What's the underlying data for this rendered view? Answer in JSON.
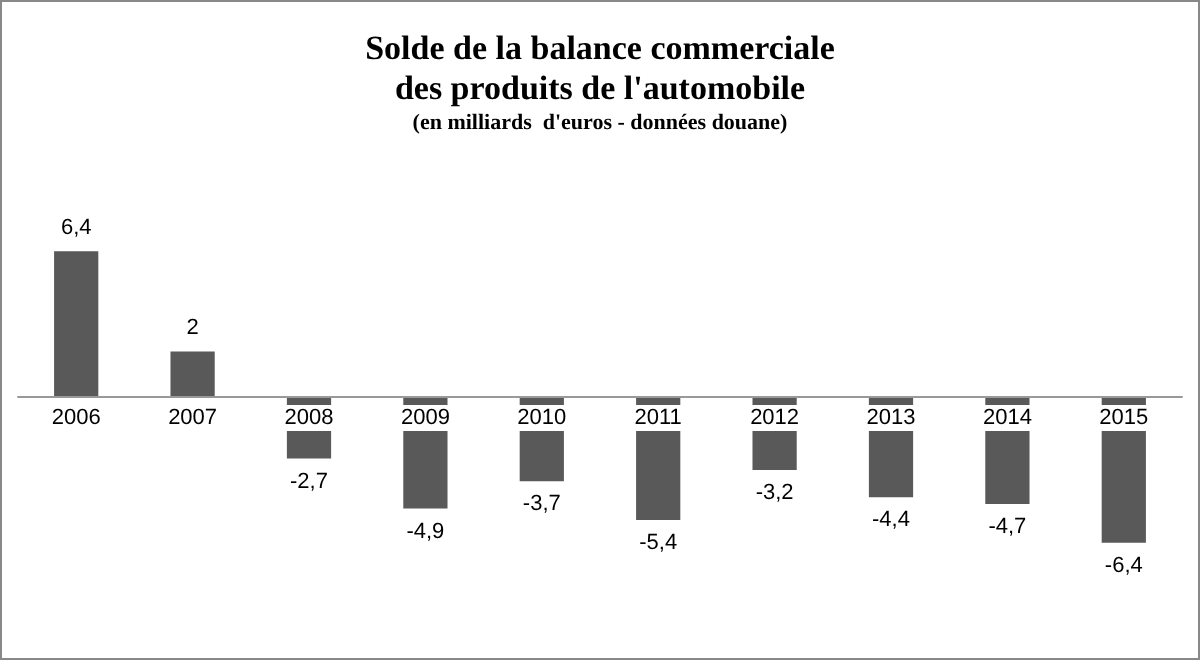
{
  "chart_data": {
    "type": "bar",
    "title": "Solde de la balance commerciale\ndes produits de l'automobile",
    "subtitle": "(en milliards  d'euros - données douane)",
    "categories": [
      "2006",
      "2007",
      "2008",
      "2009",
      "2010",
      "2011",
      "2012",
      "2013",
      "2014",
      "2015"
    ],
    "values": [
      6.4,
      2,
      -2.7,
      -4.9,
      -3.7,
      -5.4,
      -3.2,
      -4.4,
      -4.7,
      -6.4
    ],
    "value_labels": [
      "6,4",
      "2",
      "-2,7",
      "-4,9",
      "-3,7",
      "-5,4",
      "-3,2",
      "-4,4",
      "-4,7",
      "-6,4"
    ],
    "color": "#595959"
  }
}
